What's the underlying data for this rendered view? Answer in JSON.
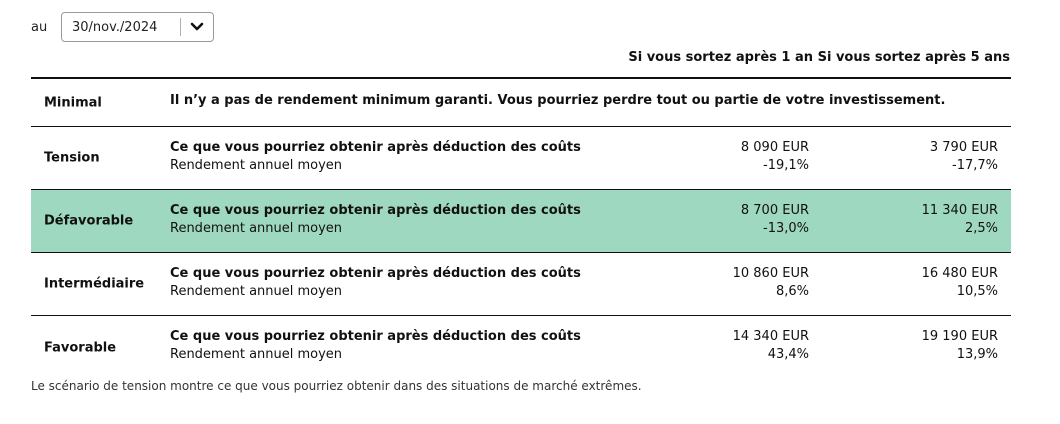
{
  "date_selector": {
    "label": "au",
    "value": "30/nov./2024",
    "icon": "chevron-down-icon"
  },
  "columns": {
    "after_1_year": "Si vous sortez après 1 an",
    "after_5_years": "Si vous sortez après 5 ans"
  },
  "minimal": {
    "name": "Minimal",
    "text": "Il n’y a pas de rendement minimum garanti. Vous pourriez perdre tout ou partie de votre investissement."
  },
  "scenarios": [
    {
      "name": "Tension",
      "desc_main": "Ce que vous pourriez obtenir après déduction des coûts",
      "desc_sub": "Rendement annuel moyen",
      "y1_amount": "8 090 EUR",
      "y1_return": "-19,1%",
      "y5_amount": "3 790 EUR",
      "y5_return": "-17,7%"
    },
    {
      "name": "Défavorable",
      "desc_main": "Ce que vous pourriez obtenir après déduction des coûts",
      "desc_sub": "Rendement annuel moyen",
      "y1_amount": "8 700 EUR",
      "y1_return": "-13,0%",
      "y5_amount": "11 340 EUR",
      "y5_return": "2,5%"
    },
    {
      "name": "Intermédiaire",
      "desc_main": "Ce que vous pourriez obtenir après déduction des coûts",
      "desc_sub": "Rendement annuel moyen",
      "y1_amount": "10 860 EUR",
      "y1_return": "8,6%",
      "y5_amount": "16 480 EUR",
      "y5_return": "10,5%"
    },
    {
      "name": "Favorable",
      "desc_main": "Ce que vous pourriez obtenir après déduction des coûts",
      "desc_sub": "Rendement annuel moyen",
      "y1_amount": "14 340 EUR",
      "y1_return": "43,4%",
      "y5_amount": "19 190 EUR",
      "y5_return": "13,9%"
    }
  ],
  "highlight_color": "#9fd8c0",
  "footnote": "Le scénario de tension montre ce que vous pourriez obtenir dans des situations de marché extrêmes."
}
